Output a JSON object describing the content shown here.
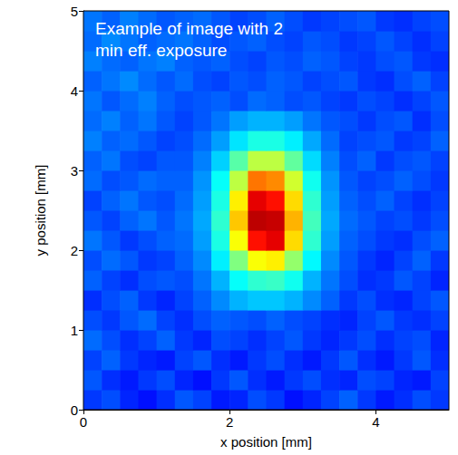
{
  "chart_data": {
    "type": "heatmap",
    "annotation": "Example of image with 2\nmin eff. exposure",
    "x_label": "x position [mm]",
    "y_label": "y position [mm]",
    "xlim": [
      0,
      5
    ],
    "xticks": [
      0,
      2,
      4
    ],
    "ylim": [
      0,
      5
    ],
    "yticks": [
      0,
      1,
      2,
      3,
      4,
      5
    ],
    "grid": false,
    "color_range": [
      0,
      10
    ],
    "cells": {
      "x": [
        0.125,
        0.375,
        0.625,
        0.875,
        1.125,
        1.375,
        1.625,
        1.875,
        2.125,
        2.375,
        2.625,
        2.875,
        3.125,
        3.375,
        3.625,
        3.875,
        4.125,
        4.375,
        4.625,
        4.875
      ],
      "y": [
        0.125,
        0.375,
        0.625,
        0.875,
        1.125,
        1.375,
        1.625,
        1.875,
        2.125,
        2.375,
        2.625,
        2.875,
        3.125,
        3.375,
        3.625,
        3.875,
        4.125,
        4.375,
        4.625,
        4.875
      ],
      "z": [
        [
          1.8,
          2.0,
          1.6,
          1.4,
          1.7,
          2.1,
          1.9,
          1.5,
          1.6,
          2.0,
          1.8,
          1.4,
          1.6,
          1.9,
          2.2,
          1.8,
          1.5,
          1.7,
          2.0,
          1.8
        ],
        [
          2.1,
          1.7,
          1.5,
          1.8,
          2.0,
          1.6,
          1.4,
          1.8,
          2.1,
          1.7,
          1.5,
          1.8,
          2.0,
          1.7,
          1.6,
          2.0,
          1.9,
          1.6,
          1.5,
          1.9
        ],
        [
          1.9,
          2.2,
          1.8,
          1.6,
          1.5,
          1.9,
          2.1,
          1.7,
          1.5,
          1.8,
          2.0,
          1.7,
          1.5,
          1.8,
          2.1,
          1.7,
          1.5,
          1.8,
          2.1,
          1.7
        ],
        [
          2.3,
          2.0,
          1.7,
          1.9,
          2.2,
          1.8,
          1.6,
          2.0,
          1.9,
          1.7,
          1.9,
          2.1,
          1.8,
          1.6,
          1.8,
          2.0,
          1.7,
          1.9,
          2.0,
          1.6
        ],
        [
          2.0,
          1.8,
          2.1,
          2.3,
          1.9,
          1.7,
          2.0,
          2.2,
          2.1,
          2.0,
          2.2,
          2.0,
          1.9,
          1.7,
          1.6,
          1.9,
          2.1,
          1.8,
          1.7,
          1.9
        ],
        [
          1.7,
          2.0,
          2.2,
          1.8,
          1.6,
          1.9,
          2.2,
          2.6,
          3.0,
          3.2,
          3.2,
          3.0,
          2.6,
          2.2,
          1.8,
          2.0,
          1.7,
          1.6,
          1.9,
          2.1
        ],
        [
          2.2,
          1.9,
          1.7,
          2.0,
          2.1,
          2.0,
          2.4,
          3.0,
          3.8,
          4.2,
          4.3,
          3.9,
          3.0,
          2.4,
          2.0,
          1.7,
          1.8,
          2.1,
          1.9,
          1.6
        ],
        [
          2.0,
          2.3,
          2.1,
          1.8,
          1.9,
          2.2,
          2.6,
          3.6,
          5.0,
          6.2,
          6.4,
          5.2,
          3.7,
          2.6,
          2.1,
          1.8,
          1.6,
          1.9,
          2.2,
          1.8
        ],
        [
          2.4,
          2.1,
          1.8,
          2.0,
          2.2,
          2.3,
          2.8,
          4.0,
          6.2,
          8.6,
          9.0,
          6.6,
          4.2,
          2.8,
          2.2,
          2.0,
          1.8,
          1.7,
          2.0,
          2.2
        ],
        [
          2.1,
          1.9,
          2.2,
          2.4,
          2.1,
          2.4,
          2.9,
          4.2,
          6.8,
          9.4,
          9.3,
          7.0,
          4.4,
          2.9,
          2.3,
          2.1,
          1.9,
          2.0,
          1.8,
          2.0
        ],
        [
          1.9,
          2.2,
          2.4,
          2.1,
          2.0,
          2.3,
          2.8,
          4.0,
          6.4,
          9.0,
          8.6,
          6.6,
          4.2,
          2.8,
          2.2,
          2.0,
          2.2,
          1.9,
          1.7,
          1.9
        ],
        [
          2.3,
          2.0,
          2.1,
          2.3,
          2.2,
          2.2,
          2.7,
          3.8,
          5.6,
          7.6,
          7.4,
          5.8,
          3.9,
          2.7,
          2.1,
          1.9,
          2.0,
          2.2,
          2.0,
          1.8
        ],
        [
          2.2,
          2.4,
          2.0,
          1.9,
          2.1,
          2.1,
          2.5,
          3.3,
          4.6,
          5.6,
          5.6,
          4.7,
          3.4,
          2.5,
          2.0,
          2.2,
          1.8,
          2.0,
          2.1,
          1.9
        ],
        [
          2.5,
          2.2,
          2.3,
          2.1,
          1.9,
          2.0,
          2.3,
          2.8,
          3.5,
          4.0,
          4.0,
          3.6,
          2.9,
          2.3,
          1.9,
          2.0,
          2.1,
          1.8,
          1.9,
          2.2
        ],
        [
          2.3,
          2.5,
          2.2,
          2.4,
          2.1,
          1.9,
          2.1,
          2.4,
          2.8,
          3.0,
          3.0,
          2.8,
          2.4,
          2.1,
          2.0,
          1.8,
          2.0,
          2.1,
          1.7,
          2.0
        ],
        [
          2.4,
          2.1,
          2.3,
          2.5,
          2.2,
          2.0,
          2.1,
          2.2,
          2.0,
          2.3,
          2.2,
          2.0,
          2.1,
          1.9,
          1.8,
          2.0,
          1.9,
          1.7,
          1.9,
          2.1
        ],
        [
          2.2,
          2.4,
          2.6,
          2.3,
          2.1,
          2.3,
          2.0,
          1.9,
          2.1,
          2.0,
          2.2,
          2.1,
          1.9,
          2.0,
          2.1,
          1.8,
          1.7,
          2.0,
          2.2,
          1.9
        ],
        [
          2.5,
          2.3,
          2.2,
          2.4,
          2.5,
          2.2,
          2.1,
          2.2,
          2.0,
          1.9,
          2.1,
          2.0,
          2.2,
          2.1,
          1.9,
          1.8,
          2.0,
          2.1,
          1.8,
          1.7
        ],
        [
          2.3,
          2.6,
          2.4,
          2.2,
          2.3,
          2.4,
          2.2,
          2.0,
          2.1,
          2.2,
          2.0,
          1.9,
          2.1,
          2.0,
          1.8,
          1.9,
          2.1,
          1.9,
          1.7,
          1.9
        ],
        [
          2.4,
          2.2,
          2.5,
          2.3,
          2.1,
          2.2,
          2.3,
          2.1,
          1.9,
          2.0,
          2.2,
          2.0,
          1.8,
          1.9,
          2.0,
          2.1,
          1.8,
          1.7,
          1.9,
          2.0
        ]
      ]
    }
  }
}
